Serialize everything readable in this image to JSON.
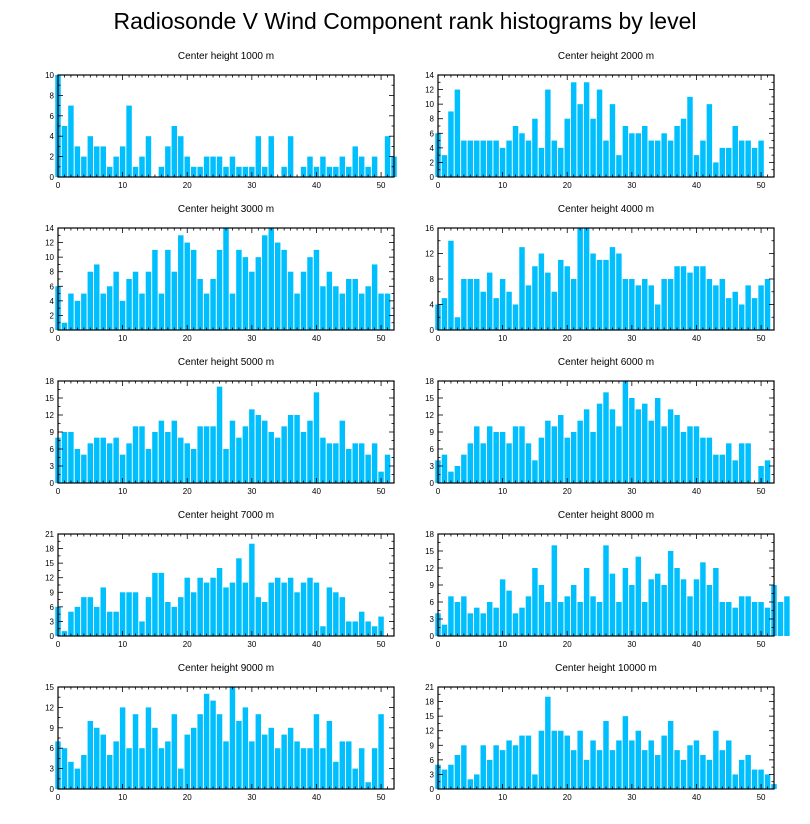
{
  "title": "Radiosonde V Wind Component rank histograms by level",
  "colors": {
    "bar": "#00bfff",
    "bar_edge": "#ffffff",
    "axis": "#000000"
  },
  "chart_data": [
    {
      "type": "bar",
      "title": "Center height 1000 m",
      "xlim": [
        0,
        52
      ],
      "ylim": [
        0,
        10
      ],
      "xticks": [
        "0",
        "10",
        "20",
        "30",
        "40",
        "50"
      ],
      "yticks": [
        "0",
        "2",
        "4",
        "6",
        "8",
        "10"
      ],
      "values": [
        10,
        5,
        7,
        3,
        2,
        4,
        3,
        3,
        1,
        2,
        3,
        7,
        1,
        2,
        4,
        0,
        1,
        3,
        5,
        4,
        2,
        1,
        1,
        2,
        2,
        2,
        1,
        2,
        1,
        1,
        1,
        4,
        1,
        4,
        0,
        1,
        4,
        0,
        1,
        2,
        1,
        2,
        1,
        1,
        2,
        1,
        3,
        2,
        1,
        2,
        0,
        4,
        2
      ]
    },
    {
      "type": "bar",
      "title": "Center height 2000 m",
      "xlim": [
        0,
        52
      ],
      "ylim": [
        0,
        14
      ],
      "xticks": [
        "0",
        "10",
        "20",
        "30",
        "40",
        "50"
      ],
      "yticks": [
        "0",
        "2",
        "4",
        "6",
        "8",
        "10",
        "12",
        "14"
      ],
      "values": [
        6,
        3,
        9,
        12,
        5,
        5,
        5,
        5,
        5,
        5,
        4,
        5,
        7,
        6,
        5,
        8,
        4,
        12,
        5,
        4,
        8,
        13,
        10,
        13,
        8,
        12,
        5,
        10,
        3,
        7,
        6,
        6,
        7,
        5,
        5,
        6,
        5,
        7,
        8,
        11,
        3,
        5,
        10,
        2,
        4,
        4,
        7,
        5,
        5,
        4,
        5
      ]
    },
    {
      "type": "bar",
      "title": "Center height 3000 m",
      "xlim": [
        0,
        52
      ],
      "ylim": [
        0,
        14
      ],
      "xticks": [
        "0",
        "10",
        "20",
        "30",
        "40",
        "50"
      ],
      "yticks": [
        "0",
        "2",
        "4",
        "6",
        "8",
        "10",
        "12",
        "14"
      ],
      "values": [
        6,
        1,
        5,
        4,
        5,
        8,
        9,
        5,
        6,
        8,
        4,
        7,
        8,
        5,
        8,
        11,
        5,
        11,
        8,
        13,
        12,
        11,
        7,
        5,
        7,
        11,
        14,
        5,
        11,
        10,
        8,
        10,
        13,
        14,
        12,
        11,
        8,
        5,
        8,
        10,
        11,
        6,
        8,
        6,
        5,
        7,
        7,
        5,
        6,
        9,
        5,
        5
      ]
    },
    {
      "type": "bar",
      "title": "Center height 4000 m",
      "xlim": [
        0,
        52
      ],
      "ylim": [
        0,
        16
      ],
      "xticks": [
        "0",
        "10",
        "20",
        "30",
        "40",
        "50"
      ],
      "yticks": [
        "0",
        "4",
        "8",
        "12",
        "16"
      ],
      "values": [
        4,
        5,
        14,
        2,
        8,
        8,
        8,
        6,
        9,
        5,
        8,
        6,
        4,
        13,
        7,
        10,
        12,
        9,
        6,
        11,
        10,
        8,
        16,
        16,
        12,
        11,
        11,
        13,
        12,
        8,
        8,
        7,
        8,
        7,
        4,
        8,
        8,
        10,
        10,
        9,
        10,
        10,
        8,
        7,
        8,
        5,
        6,
        4,
        7,
        5,
        7,
        8
      ]
    },
    {
      "type": "bar",
      "title": "Center height 5000 m",
      "xlim": [
        0,
        52
      ],
      "ylim": [
        0,
        18
      ],
      "xticks": [
        "0",
        "10",
        "20",
        "30",
        "40",
        "50"
      ],
      "yticks": [
        "0",
        "3",
        "6",
        "9",
        "12",
        "15",
        "18"
      ],
      "values": [
        8,
        9,
        9,
        6,
        5,
        7,
        8,
        8,
        7,
        8,
        5,
        7,
        10,
        10,
        6,
        9,
        11,
        9,
        11,
        8,
        7,
        6,
        10,
        10,
        10,
        17,
        6,
        11,
        8,
        10,
        13,
        12,
        11,
        9,
        8,
        10,
        12,
        12,
        9,
        11,
        16,
        8,
        7,
        7,
        11,
        6,
        7,
        7,
        5,
        7,
        2,
        5
      ]
    },
    {
      "type": "bar",
      "title": "Center height 6000 m",
      "xlim": [
        0,
        52
      ],
      "ylim": [
        0,
        18
      ],
      "xticks": [
        "0",
        "10",
        "20",
        "30",
        "40",
        "50"
      ],
      "yticks": [
        "0",
        "3",
        "6",
        "9",
        "12",
        "15",
        "18"
      ],
      "values": [
        4,
        5,
        2,
        3,
        5,
        7,
        10,
        7,
        10,
        9,
        9,
        7,
        10,
        10,
        7,
        4,
        8,
        11,
        10,
        12,
        8,
        9,
        11,
        13,
        9,
        14,
        16,
        13,
        10,
        18,
        15,
        13,
        14,
        11,
        15,
        10,
        13,
        12,
        9,
        10,
        10,
        8,
        8,
        5,
        5,
        7,
        4,
        7,
        7,
        0,
        3,
        4
      ]
    },
    {
      "type": "bar",
      "title": "Center height 7000 m",
      "xlim": [
        0,
        52
      ],
      "ylim": [
        0,
        21
      ],
      "xticks": [
        "0",
        "10",
        "20",
        "30",
        "40",
        "50"
      ],
      "yticks": [
        "0",
        "3",
        "6",
        "9",
        "12",
        "15",
        "18",
        "21"
      ],
      "values": [
        6,
        1,
        5,
        6,
        8,
        8,
        6,
        10,
        5,
        5,
        9,
        9,
        9,
        3,
        8,
        13,
        13,
        7,
        6,
        8,
        12,
        9,
        12,
        11,
        12,
        14,
        10,
        11,
        16,
        11,
        19,
        8,
        7,
        11,
        12,
        11,
        12,
        9,
        11,
        12,
        11,
        2,
        10,
        9,
        8,
        3,
        3,
        5,
        3,
        2,
        4
      ]
    },
    {
      "type": "bar",
      "title": "Center height 8000 m",
      "xlim": [
        0,
        52
      ],
      "ylim": [
        0,
        18
      ],
      "xticks": [
        "0",
        "10",
        "20",
        "30",
        "40",
        "50"
      ],
      "yticks": [
        "0",
        "3",
        "6",
        "9",
        "12",
        "15",
        "18"
      ],
      "values": [
        4,
        2,
        7,
        6,
        7,
        4,
        5,
        4,
        6,
        5,
        10,
        8,
        4,
        5,
        7,
        12,
        9,
        6,
        16,
        6,
        7,
        9,
        6,
        12,
        7,
        6,
        16,
        11,
        6,
        12,
        9,
        14,
        6,
        10,
        11,
        9,
        15,
        12,
        10,
        7,
        10,
        13,
        9,
        12,
        6,
        6,
        5,
        7,
        7,
        6,
        6,
        5,
        9,
        6,
        7
      ]
    },
    {
      "type": "bar",
      "title": "Center height 9000 m",
      "xlim": [
        0,
        52
      ],
      "ylim": [
        0,
        15
      ],
      "xticks": [
        "0",
        "10",
        "20",
        "30",
        "40",
        "50"
      ],
      "yticks": [
        "0",
        "3",
        "6",
        "9",
        "12",
        "15"
      ],
      "values": [
        7,
        6,
        4,
        3,
        5,
        10,
        9,
        8,
        5,
        7,
        12,
        6,
        11,
        6,
        12,
        9,
        6,
        7,
        11,
        3,
        8,
        9,
        11,
        14,
        13,
        11,
        7,
        15,
        10,
        12,
        7,
        11,
        8,
        9,
        6,
        8,
        9,
        7,
        6,
        6,
        11,
        6,
        10,
        4,
        7,
        7,
        3,
        6,
        1,
        6,
        11
      ]
    },
    {
      "type": "bar",
      "title": "Center height 10000 m",
      "xlim": [
        0,
        52
      ],
      "ylim": [
        0,
        21
      ],
      "xticks": [
        "0",
        "10",
        "20",
        "30",
        "40",
        "50"
      ],
      "yticks": [
        "0",
        "3",
        "6",
        "9",
        "12",
        "15",
        "18",
        "21"
      ],
      "values": [
        5,
        4,
        5,
        7,
        9,
        2,
        3,
        9,
        6,
        9,
        8,
        10,
        9,
        11,
        11,
        3,
        12,
        19,
        12,
        12,
        11,
        8,
        12,
        6,
        10,
        8,
        14,
        8,
        10,
        15,
        10,
        12,
        8,
        10,
        7,
        11,
        14,
        8,
        6,
        9,
        10,
        7,
        6,
        12,
        8,
        10,
        3,
        6,
        7,
        4,
        4,
        3,
        1
      ]
    }
  ]
}
